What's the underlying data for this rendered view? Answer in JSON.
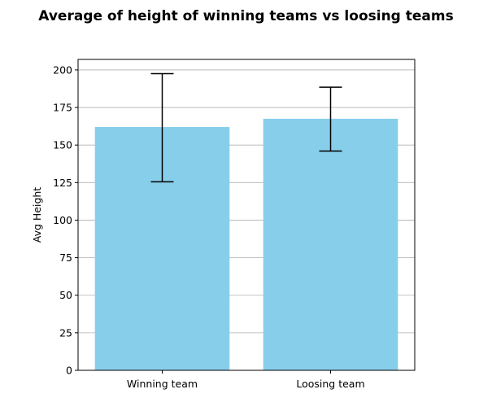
{
  "chart_data": {
    "type": "bar",
    "title": "Average of height of winning teams vs loosing teams",
    "xlabel": "",
    "ylabel": "Avg Height",
    "categories": [
      "Winning team",
      "Loosing team"
    ],
    "values": [
      162,
      167.5
    ],
    "error_bars": [
      {
        "low": 125.5,
        "high": 197.5
      },
      {
        "low": 146,
        "high": 188.5
      }
    ],
    "ylim": [
      0,
      207
    ],
    "yticks": [
      0,
      25,
      50,
      75,
      100,
      125,
      150,
      175,
      200
    ],
    "grid": "y",
    "legend": "none",
    "colors": {
      "bar": "#87ceeb",
      "error_bar": "#000000",
      "grid": "#b0b0b0",
      "axis": "#000000"
    }
  }
}
